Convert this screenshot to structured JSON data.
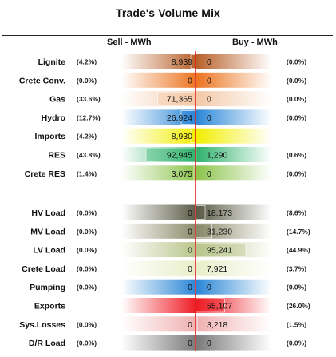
{
  "title": "Trade's Volume Mix",
  "sell_header": "Sell - MWh",
  "buy_header": "Buy - MWh",
  "chart_data": {
    "type": "bar",
    "title": "Trade's Volume Mix",
    "series": [
      {
        "name": "Sell - MWh"
      },
      {
        "name": "Buy - MWh"
      }
    ],
    "rows": [
      {
        "label": "Lignite",
        "sell": 8939,
        "sell_label": "8,939",
        "sell_pct": "(4.2%)",
        "buy": 0,
        "buy_label": "0",
        "buy_pct": "(0.0%)",
        "color": "#b8602a",
        "group": 1
      },
      {
        "label": "Crete Conv.",
        "sell": 0,
        "sell_label": "0",
        "sell_pct": "(0.0%)",
        "buy": 0,
        "buy_label": "0",
        "buy_pct": "(0.0%)",
        "color": "#ec7420",
        "group": 1
      },
      {
        "label": "Gas",
        "sell": 71365,
        "sell_label": "71,365",
        "sell_pct": "(33.6%)",
        "buy": 0,
        "buy_label": "0",
        "buy_pct": "(0.0%)",
        "color": "#f3c8a6",
        "group": 1
      },
      {
        "label": "Hydro",
        "sell": 26924,
        "sell_label": "26,924",
        "sell_pct": "(12.7%)",
        "buy": 0,
        "buy_label": "0",
        "buy_pct": "(0.0%)",
        "color": "#2b87d8",
        "group": 1
      },
      {
        "label": "Imports",
        "sell": 8930,
        "sell_label": "8,930",
        "sell_pct": "(4.2%)",
        "buy": null,
        "buy_label": "",
        "buy_pct": "",
        "color": "#f2ee00",
        "group": 1
      },
      {
        "label": "RES",
        "sell": 92945,
        "sell_label": "92,945",
        "sell_pct": "(43.8%)",
        "buy": 1290,
        "buy_label": "1,290",
        "buy_pct": "(0.6%)",
        "color": "#2fb36c",
        "group": 1
      },
      {
        "label": "Crete RES",
        "sell": 3075,
        "sell_label": "3,075",
        "sell_pct": "(1.4%)",
        "buy": 0,
        "buy_label": "0",
        "buy_pct": "(0.0%)",
        "color": "#8cc44c",
        "group": 1
      },
      {
        "label": "HV Load",
        "sell": 0,
        "sell_label": "0",
        "sell_pct": "(0.0%)",
        "buy": 18173,
        "buy_label": "18,173",
        "buy_pct": "(8.6%)",
        "color": "#5c5c48",
        "group": 2
      },
      {
        "label": "MV Load",
        "sell": 0,
        "sell_label": "0",
        "sell_pct": "(0.0%)",
        "buy": 31230,
        "buy_label": "31,230",
        "buy_pct": "(14.7%)",
        "color": "#8a8a6a",
        "group": 2
      },
      {
        "label": "LV Load",
        "sell": 0,
        "sell_label": "0",
        "sell_pct": "(0.0%)",
        "buy": 95241,
        "buy_label": "95,241",
        "buy_pct": "(44.9%)",
        "color": "#b8c48a",
        "group": 2
      },
      {
        "label": "Crete Load",
        "sell": 0,
        "sell_label": "0",
        "sell_pct": "(0.0%)",
        "buy": 7921,
        "buy_label": "7,921",
        "buy_pct": "(3.7%)",
        "color": "#e8eec8",
        "group": 2
      },
      {
        "label": "Pumping",
        "sell": 0,
        "sell_label": "0",
        "sell_pct": "(0.0%)",
        "buy": 0,
        "buy_label": "0",
        "buy_pct": "(0.0%)",
        "color": "#2a86d6",
        "group": 2
      },
      {
        "label": "Exports",
        "sell": null,
        "sell_label": "",
        "sell_pct": "",
        "buy": 55107,
        "buy_label": "55,107",
        "buy_pct": "(26.0%)",
        "color": "#ee1c24",
        "group": 2
      },
      {
        "label": "Sys.Losses",
        "sell": 0,
        "sell_label": "0",
        "sell_pct": "(0.0%)",
        "buy": 3218,
        "buy_label": "3,218",
        "buy_pct": "(1.5%)",
        "color": "#f0b0b0",
        "group": 2
      },
      {
        "label": "D/R Load",
        "sell": 0,
        "sell_label": "0",
        "sell_pct": "(0.0%)",
        "buy": 0,
        "buy_label": "0",
        "buy_pct": "(0.0%)",
        "color": "#7a7a7a",
        "group": 2
      }
    ]
  }
}
